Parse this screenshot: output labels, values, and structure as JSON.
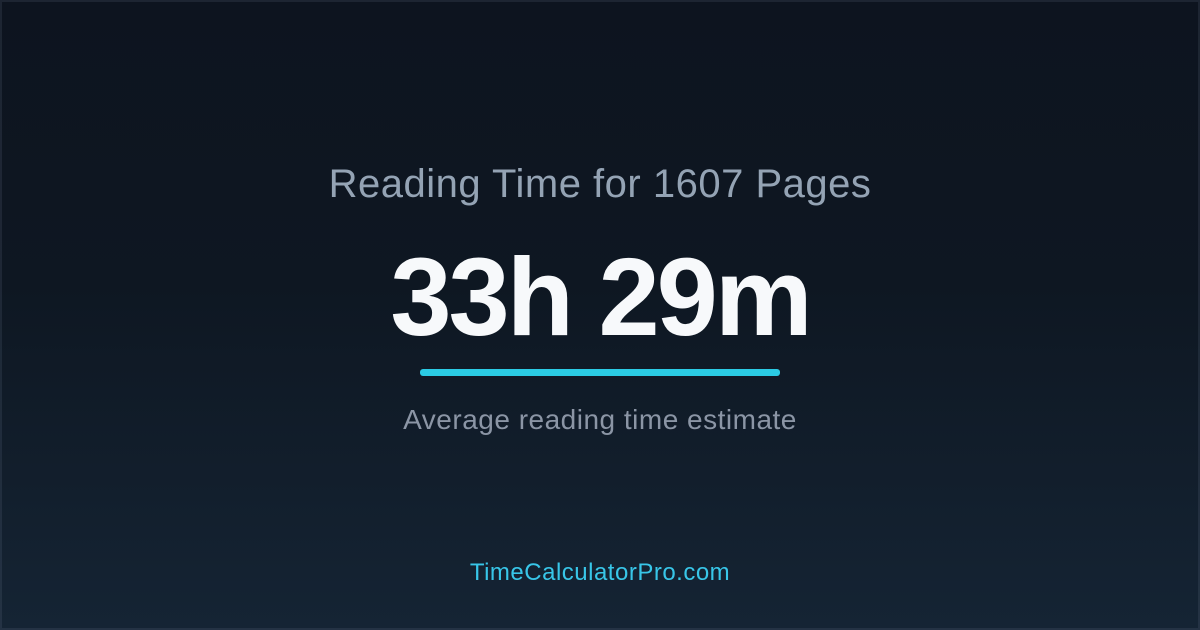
{
  "card": {
    "title": "Reading Time for 1607 Pages",
    "result": "33h 29m",
    "subtitle": "Average reading time estimate",
    "footer": "TimeCalculatorPro.com"
  },
  "colors": {
    "background_top": "#0d141f",
    "background_bottom": "#152434",
    "title_text": "#94a3b4",
    "result_text": "#f7f9fb",
    "accent": "#2bcbe4",
    "subtitle_text": "#8b95a5",
    "footer_text": "#38c6e8"
  }
}
